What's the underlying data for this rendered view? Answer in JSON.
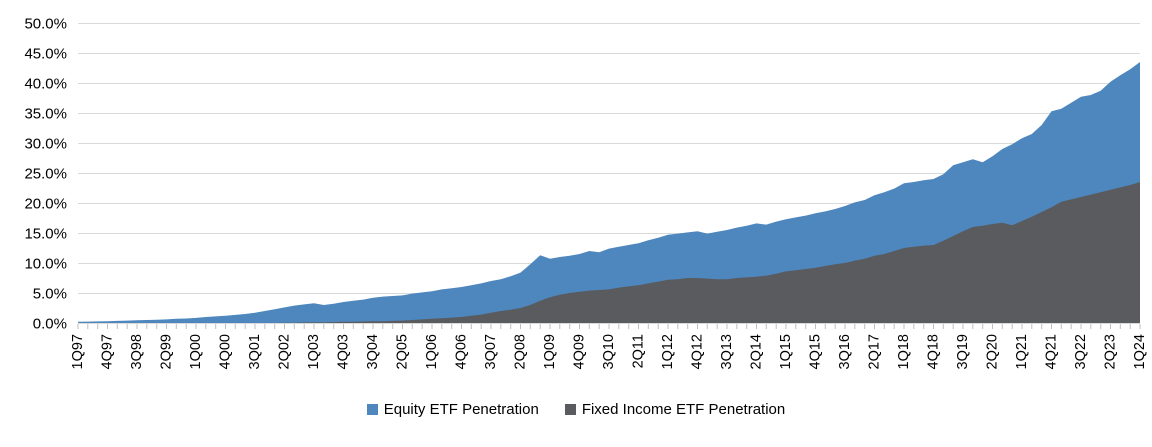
{
  "chart_data": {
    "type": "area",
    "title": "",
    "xlabel": "",
    "ylabel": "",
    "ylim": [
      0,
      50
    ],
    "y_tick_step": 5,
    "y_tick_labels": [
      "0.0%",
      "5.0%",
      "10.0%",
      "15.0%",
      "20.0%",
      "25.0%",
      "30.0%",
      "35.0%",
      "40.0%",
      "45.0%",
      "50.0%"
    ],
    "x_label_interval": 3,
    "x_tick_labels_shown": [
      "1Q97",
      "4Q97",
      "3Q98",
      "2Q99",
      "1Q00",
      "4Q00",
      "3Q01",
      "2Q02",
      "1Q03",
      "4Q03",
      "3Q04",
      "2Q05",
      "1Q06",
      "4Q06",
      "3Q07",
      "2Q08",
      "1Q09",
      "4Q09",
      "3Q10",
      "2Q11",
      "1Q12",
      "4Q12",
      "3Q13",
      "2Q14",
      "1Q15",
      "4Q15",
      "3Q16",
      "2Q17",
      "1Q18",
      "4Q18",
      "3Q19",
      "2Q20",
      "1Q21",
      "4Q21",
      "3Q22",
      "2Q23",
      "1Q24"
    ],
    "grid": "horizontal",
    "gridline_color": "#D9D9D9",
    "tick_color": "#BFBFBF",
    "axis_text_color": "#000000",
    "legend_position": "bottom",
    "overlapping_areas": true,
    "categories": [
      "1Q97",
      "2Q97",
      "3Q97",
      "4Q97",
      "1Q98",
      "2Q98",
      "3Q98",
      "4Q98",
      "1Q99",
      "2Q99",
      "3Q99",
      "4Q99",
      "1Q00",
      "2Q00",
      "3Q00",
      "4Q00",
      "1Q01",
      "2Q01",
      "3Q01",
      "4Q01",
      "1Q02",
      "2Q02",
      "3Q02",
      "4Q02",
      "1Q03",
      "2Q03",
      "3Q03",
      "4Q03",
      "1Q04",
      "2Q04",
      "3Q04",
      "4Q04",
      "1Q05",
      "2Q05",
      "3Q05",
      "4Q05",
      "1Q06",
      "2Q06",
      "3Q06",
      "4Q06",
      "1Q07",
      "2Q07",
      "3Q07",
      "4Q07",
      "1Q08",
      "2Q08",
      "3Q08",
      "4Q08",
      "1Q09",
      "2Q09",
      "3Q09",
      "4Q09",
      "1Q10",
      "2Q10",
      "3Q10",
      "4Q10",
      "1Q11",
      "2Q11",
      "3Q11",
      "4Q11",
      "1Q12",
      "2Q12",
      "3Q12",
      "4Q12",
      "1Q13",
      "2Q13",
      "3Q13",
      "4Q13",
      "1Q14",
      "2Q14",
      "3Q14",
      "4Q14",
      "1Q15",
      "2Q15",
      "3Q15",
      "4Q15",
      "1Q16",
      "2Q16",
      "3Q16",
      "4Q16",
      "1Q17",
      "2Q17",
      "3Q17",
      "4Q17",
      "1Q18",
      "2Q18",
      "3Q18",
      "4Q18",
      "1Q19",
      "2Q19",
      "3Q19",
      "4Q19",
      "1Q20",
      "2Q20",
      "3Q20",
      "4Q20",
      "1Q21",
      "2Q21",
      "3Q21",
      "4Q21",
      "1Q22",
      "2Q22",
      "3Q22",
      "4Q22",
      "1Q23",
      "2Q23",
      "3Q23",
      "4Q23",
      "1Q24"
    ],
    "series": [
      {
        "name": "Equity ETF Penetration",
        "color": "#4E86BE",
        "values": [
          0.2,
          0.23,
          0.27,
          0.3,
          0.35,
          0.4,
          0.45,
          0.5,
          0.55,
          0.6,
          0.7,
          0.75,
          0.85,
          1.0,
          1.1,
          1.2,
          1.35,
          1.5,
          1.7,
          2.0,
          2.3,
          2.6,
          2.9,
          3.1,
          3.3,
          3.0,
          3.2,
          3.5,
          3.7,
          3.9,
          4.2,
          4.4,
          4.5,
          4.6,
          4.9,
          5.1,
          5.3,
          5.6,
          5.8,
          6.0,
          6.3,
          6.6,
          7.0,
          7.3,
          7.8,
          8.4,
          9.8,
          11.3,
          10.7,
          11.0,
          11.2,
          11.5,
          12.0,
          11.8,
          12.4,
          12.7,
          13.0,
          13.3,
          13.8,
          14.2,
          14.7,
          14.9,
          15.1,
          15.3,
          14.9,
          15.2,
          15.5,
          15.9,
          16.2,
          16.6,
          16.4,
          16.9,
          17.3,
          17.6,
          17.9,
          18.3,
          18.6,
          19.0,
          19.5,
          20.1,
          20.5,
          21.3,
          21.8,
          22.4,
          23.3,
          23.5,
          23.8,
          24.0,
          24.8,
          26.3,
          26.8,
          27.3,
          26.8,
          27.8,
          29.0,
          29.8,
          30.8,
          31.5,
          33.0,
          35.3,
          35.7,
          36.7,
          37.7,
          38.0,
          38.7,
          40.2,
          41.3,
          42.3,
          43.5
        ]
      },
      {
        "name": "Fixed Income ETF Penetration",
        "color": "#595B5E",
        "values": [
          0,
          0,
          0,
          0,
          0,
          0,
          0,
          0,
          0,
          0,
          0,
          0,
          0,
          0,
          0,
          0,
          0,
          0,
          0,
          0,
          0,
          0.05,
          0.05,
          0.1,
          0.1,
          0.1,
          0.15,
          0.2,
          0.2,
          0.25,
          0.3,
          0.3,
          0.35,
          0.4,
          0.5,
          0.6,
          0.7,
          0.8,
          0.9,
          1.0,
          1.2,
          1.4,
          1.7,
          2.0,
          2.2,
          2.5,
          3.0,
          3.7,
          4.3,
          4.7,
          5.0,
          5.2,
          5.4,
          5.5,
          5.6,
          5.9,
          6.1,
          6.3,
          6.6,
          6.9,
          7.2,
          7.3,
          7.5,
          7.5,
          7.4,
          7.3,
          7.3,
          7.5,
          7.6,
          7.7,
          7.9,
          8.2,
          8.6,
          8.8,
          9.0,
          9.2,
          9.5,
          9.8,
          10.0,
          10.4,
          10.7,
          11.2,
          11.5,
          12.0,
          12.5,
          12.7,
          12.9,
          13.0,
          13.7,
          14.5,
          15.3,
          16.0,
          16.2,
          16.5,
          16.7,
          16.3,
          17.0,
          17.7,
          18.5,
          19.3,
          20.2,
          20.6,
          21.0,
          21.4,
          21.8,
          22.2,
          22.6,
          23.0,
          23.5
        ]
      }
    ]
  },
  "legend": {
    "equity_label": "Equity ETF Penetration",
    "fixed_income_label": "Fixed Income ETF Penetration"
  }
}
